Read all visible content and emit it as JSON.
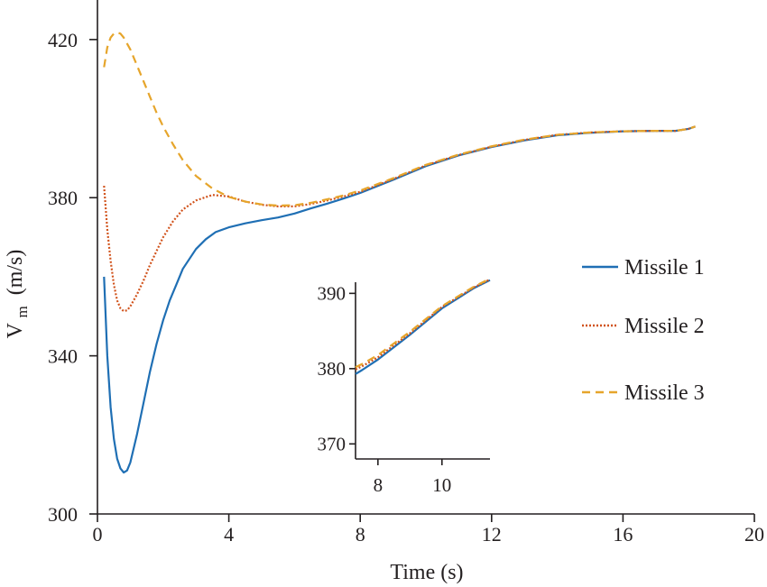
{
  "chart_data": {
    "type": "line",
    "title": "",
    "xlabel": "Time (s)",
    "ylabel_main": "V",
    "ylabel_sub": "m",
    "ylabel_unit": "(m/s)",
    "xlim": [
      0,
      20
    ],
    "ylim": [
      300,
      430
    ],
    "xticks": [
      "0",
      "4",
      "8",
      "12",
      "16",
      "20"
    ],
    "yticks": [
      "300",
      "340",
      "380",
      "420"
    ],
    "grid": false,
    "legend_position": "right",
    "series": [
      {
        "name": "Missile 1",
        "color": "#1f6fb4",
        "dash": "solid",
        "points": [
          [
            0.2,
            360
          ],
          [
            0.3,
            340
          ],
          [
            0.4,
            327
          ],
          [
            0.5,
            319
          ],
          [
            0.6,
            314
          ],
          [
            0.7,
            311.5
          ],
          [
            0.8,
            310.5
          ],
          [
            0.9,
            311
          ],
          [
            1.0,
            313
          ],
          [
            1.2,
            320
          ],
          [
            1.4,
            328
          ],
          [
            1.6,
            336
          ],
          [
            1.8,
            343
          ],
          [
            2.0,
            349
          ],
          [
            2.2,
            354
          ],
          [
            2.4,
            358
          ],
          [
            2.6,
            362
          ],
          [
            2.8,
            364.5
          ],
          [
            3.0,
            367
          ],
          [
            3.3,
            369.5
          ],
          [
            3.6,
            371.3
          ],
          [
            4.0,
            372.5
          ],
          [
            4.5,
            373.5
          ],
          [
            5.0,
            374.3
          ],
          [
            5.5,
            375
          ],
          [
            6.0,
            376
          ],
          [
            6.5,
            377.3
          ],
          [
            7.0,
            378.5
          ],
          [
            7.5,
            379.8
          ],
          [
            8.0,
            381.2
          ],
          [
            9.0,
            384.5
          ],
          [
            10.0,
            388
          ],
          [
            11.0,
            390.7
          ],
          [
            12.0,
            392.8
          ],
          [
            13.0,
            394.5
          ],
          [
            14.0,
            395.8
          ],
          [
            15.0,
            396.4
          ],
          [
            16.0,
            396.8
          ],
          [
            17.0,
            396.9
          ],
          [
            17.6,
            396.9
          ],
          [
            18.0,
            397.4
          ],
          [
            18.2,
            398
          ]
        ]
      },
      {
        "name": "Missile 2",
        "color": "#d1531c",
        "dash": "dotted",
        "points": [
          [
            0.2,
            383
          ],
          [
            0.3,
            372
          ],
          [
            0.4,
            364
          ],
          [
            0.5,
            358
          ],
          [
            0.6,
            354
          ],
          [
            0.7,
            352
          ],
          [
            0.8,
            351.3
          ],
          [
            0.9,
            351.5
          ],
          [
            1.0,
            352.5
          ],
          [
            1.2,
            355.5
          ],
          [
            1.4,
            359
          ],
          [
            1.6,
            363
          ],
          [
            1.8,
            366.5
          ],
          [
            2.0,
            370
          ],
          [
            2.3,
            374
          ],
          [
            2.6,
            377
          ],
          [
            3.0,
            379.3
          ],
          [
            3.5,
            380.7
          ],
          [
            4.0,
            380.3
          ],
          [
            4.5,
            379
          ],
          [
            5.0,
            378.2
          ],
          [
            5.5,
            377.8
          ],
          [
            6.0,
            377.8
          ],
          [
            6.5,
            378.4
          ],
          [
            7.0,
            379.3
          ],
          [
            7.5,
            380.3
          ],
          [
            8.0,
            381.5
          ],
          [
            9.0,
            384.7
          ],
          [
            10.0,
            388.2
          ],
          [
            11.0,
            390.8
          ],
          [
            12.0,
            392.9
          ],
          [
            13.0,
            394.6
          ],
          [
            14.0,
            395.9
          ],
          [
            15.0,
            396.5
          ],
          [
            16.0,
            396.8
          ],
          [
            17.0,
            396.9
          ],
          [
            17.6,
            396.9
          ],
          [
            18.0,
            397.4
          ],
          [
            18.2,
            398
          ]
        ]
      },
      {
        "name": "Missile 3",
        "color": "#e6a52b",
        "dash": "dashed",
        "points": [
          [
            0.2,
            413
          ],
          [
            0.3,
            418
          ],
          [
            0.4,
            420.5
          ],
          [
            0.5,
            421.5
          ],
          [
            0.6,
            421.8
          ],
          [
            0.7,
            421.5
          ],
          [
            0.8,
            420.5
          ],
          [
            1.0,
            417.5
          ],
          [
            1.2,
            413.5
          ],
          [
            1.4,
            409.5
          ],
          [
            1.6,
            405.5
          ],
          [
            1.8,
            401.5
          ],
          [
            2.0,
            398
          ],
          [
            2.3,
            393.5
          ],
          [
            2.6,
            389.5
          ],
          [
            3.0,
            385.5
          ],
          [
            3.5,
            382.3
          ],
          [
            4.0,
            380.2
          ],
          [
            4.5,
            379
          ],
          [
            5.0,
            378.3
          ],
          [
            5.5,
            378
          ],
          [
            6.0,
            378.1
          ],
          [
            6.5,
            378.7
          ],
          [
            7.0,
            379.6
          ],
          [
            7.5,
            380.6
          ],
          [
            8.0,
            381.8
          ],
          [
            9.0,
            384.9
          ],
          [
            10.0,
            388.3
          ],
          [
            11.0,
            390.9
          ],
          [
            12.0,
            393
          ],
          [
            13.0,
            394.7
          ],
          [
            14.0,
            395.9
          ],
          [
            15.0,
            396.5
          ],
          [
            16.0,
            396.8
          ],
          [
            17.0,
            396.9
          ],
          [
            17.6,
            396.9
          ],
          [
            18.0,
            397.4
          ],
          [
            18.2,
            398
          ]
        ]
      }
    ],
    "inset": {
      "xlim": [
        7.3,
        11.5
      ],
      "ylim": [
        368,
        391
      ],
      "xticks": [
        "8",
        "10"
      ],
      "yticks": [
        "370",
        "380",
        "390"
      ]
    }
  }
}
